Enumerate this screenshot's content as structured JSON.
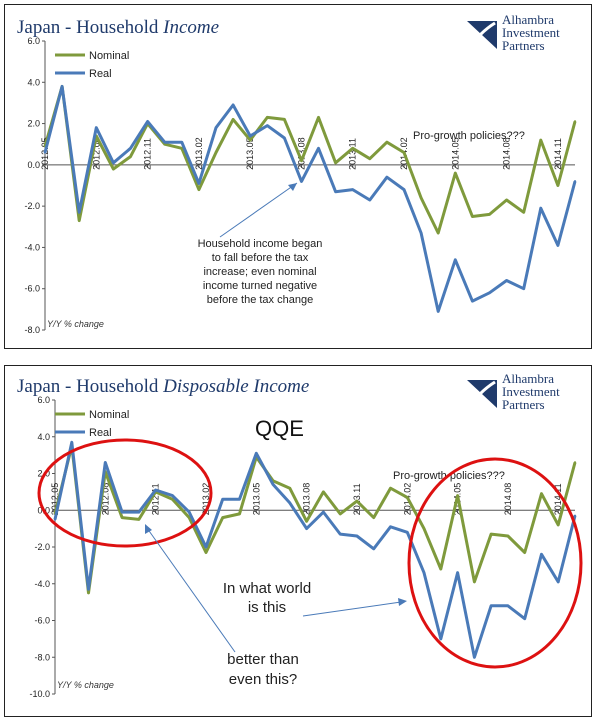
{
  "logo": {
    "line1": "Alhambra",
    "line2": "Investment",
    "line3": "Partners"
  },
  "chart_data": [
    {
      "type": "line",
      "title_prefix": "Japan - Household ",
      "title_italic": "Income",
      "note": "Y/Y % change",
      "ylim": [
        -8,
        6
      ],
      "yticks": [
        "6.0",
        "4.0",
        "2.0",
        "0.0",
        "-2.0",
        "-4.0",
        "-6.0",
        "-8.0"
      ],
      "xticks": [
        "2012.05",
        "2012.08",
        "2012.11",
        "2013.02",
        "2013.05",
        "2013.08",
        "2013.11",
        "2014.02",
        "2014.05",
        "2014.08",
        "2014.11"
      ],
      "legend_position": "top-left",
      "series": [
        {
          "name": "Nominal",
          "color": "#7f9a3c",
          "values": [
            0.9,
            3.8,
            -2.7,
            1.4,
            -0.2,
            0.4,
            2.0,
            1.0,
            0.8,
            -1.2,
            0.6,
            2.2,
            1.2,
            2.3,
            2.2,
            0.2,
            2.3,
            0.1,
            0.8,
            0.3,
            1.1,
            0.6,
            -1.6,
            -3.3,
            -0.4,
            -2.5,
            -2.4,
            -1.7,
            -2.3,
            1.2,
            -1.0,
            2.1
          ]
        },
        {
          "name": "Real",
          "color": "#4a7ab8",
          "values": [
            0.6,
            3.8,
            -2.3,
            1.8,
            0.1,
            0.8,
            2.1,
            1.1,
            1.1,
            -0.9,
            1.8,
            2.9,
            1.4,
            1.9,
            1.3,
            -0.8,
            0.8,
            -1.3,
            -1.2,
            -1.7,
            -0.6,
            -1.2,
            -3.3,
            -7.1,
            -4.6,
            -6.6,
            -6.2,
            -5.6,
            -6.0,
            -2.1,
            -3.9,
            -0.8
          ]
        }
      ],
      "annotations": {
        "pro_growth": "Pro-growth policies???",
        "income_note": [
          "Household income began",
          "to fall before the tax",
          "increase; even nominal",
          "income turned negative",
          "before the tax change"
        ]
      }
    },
    {
      "type": "line",
      "title_prefix": "Japan - Household ",
      "title_italic": "Disposable Income",
      "note": "Y/Y % change",
      "ylim": [
        -10,
        6
      ],
      "yticks": [
        "6.0",
        "4.0",
        "2.0",
        "0.0",
        "-2.0",
        "-4.0",
        "-6.0",
        "-8.0",
        "-10.0"
      ],
      "xticks": [
        "2012.05",
        "2012.08",
        "2012.11",
        "2013.02",
        "2013.05",
        "2013.08",
        "2013.11",
        "2014.02",
        "2014.05",
        "2014.08",
        "2014.11"
      ],
      "legend_position": "top-left",
      "series": [
        {
          "name": "Nominal",
          "color": "#7f9a3c",
          "values": [
            -0.2,
            3.5,
            -4.5,
            2.1,
            -0.4,
            -0.5,
            1.0,
            0.6,
            -0.4,
            -2.3,
            -0.4,
            -0.2,
            2.9,
            1.6,
            1.2,
            -0.6,
            1.0,
            -0.2,
            0.5,
            -0.4,
            1.2,
            0.7,
            -1.0,
            -3.2,
            0.8,
            -3.9,
            -1.3,
            -1.4,
            -2.3,
            0.9,
            -0.8,
            2.6
          ]
        },
        {
          "name": "Real",
          "color": "#4a7ab8",
          "values": [
            -0.5,
            3.7,
            -4.3,
            2.6,
            -0.1,
            -0.1,
            1.1,
            0.8,
            -0.1,
            -2.0,
            0.6,
            0.6,
            3.1,
            1.4,
            0.4,
            -1.0,
            -0.1,
            -1.3,
            -1.4,
            -2.1,
            -0.9,
            -1.2,
            -3.4,
            -7.0,
            -3.4,
            -8.0,
            -5.2,
            -5.2,
            -5.9,
            -2.4,
            -3.9,
            -0.3
          ]
        }
      ],
      "annotations": {
        "qqe": "QQE",
        "pro_growth": "Pro-growth policies???",
        "world_1": "In what world",
        "world_2": "is this",
        "better_1": "better than",
        "better_2": "even this?"
      }
    }
  ]
}
